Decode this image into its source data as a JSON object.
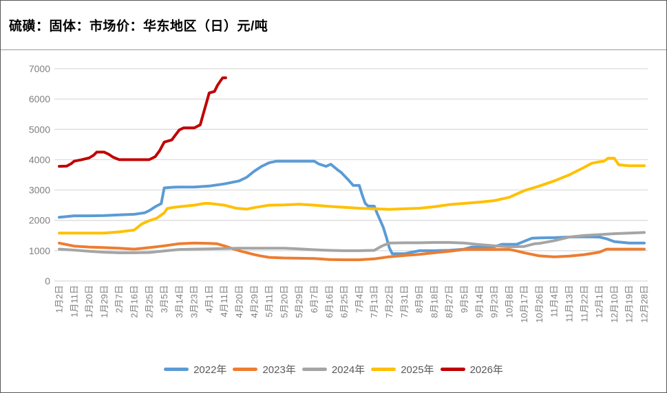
{
  "title": "硫磺：固体：市场价：华东地区（日）元/吨",
  "chart_data": {
    "type": "line",
    "title": "硫磺：固体：市场价：华东地区（日）元/吨",
    "ylabel": "元/吨",
    "ylim": [
      0,
      7000
    ],
    "y_ticks": [
      0,
      1000,
      2000,
      3000,
      4000,
      5000,
      6000,
      7000
    ],
    "grid": "horizontal",
    "legend_position": "bottom",
    "x_tick_labels": [
      "1月2日",
      "1月11日",
      "1月20日",
      "1月29日",
      "2月7日",
      "2月16日",
      "2月25日",
      "3月5日",
      "3月14日",
      "3月23日",
      "4月1日",
      "4月11日",
      "4月20日",
      "4月29日",
      "5月11日",
      "5月20日",
      "5月29日",
      "6月7日",
      "6月16日",
      "6月25日",
      "7月4日",
      "7月13日",
      "7月22日",
      "7月31日",
      "8月9日",
      "8月18日",
      "8月27日",
      "9月5日",
      "9月14日",
      "9月23日",
      "10月8日",
      "10月17日",
      "10月26日",
      "11月4日",
      "11月13日",
      "11月22日",
      "12月1日",
      "12月10日",
      "12月19日",
      "12月28日"
    ],
    "series": [
      {
        "name": "2022年",
        "color": "#5B9BD5",
        "points": [
          [
            0,
            2100
          ],
          [
            1,
            2150
          ],
          [
            2,
            2150
          ],
          [
            3,
            2160
          ],
          [
            4,
            2180
          ],
          [
            5,
            2200
          ],
          [
            5.7,
            2250
          ],
          [
            6,
            2320
          ],
          [
            6.4,
            2450
          ],
          [
            6.8,
            2550
          ],
          [
            7,
            3070
          ],
          [
            7.5,
            3090
          ],
          [
            8,
            3100
          ],
          [
            9,
            3100
          ],
          [
            10,
            3130
          ],
          [
            11,
            3200
          ],
          [
            12,
            3300
          ],
          [
            12.5,
            3420
          ],
          [
            13,
            3620
          ],
          [
            13.5,
            3780
          ],
          [
            14,
            3900
          ],
          [
            14.5,
            3950
          ],
          [
            15,
            3950
          ],
          [
            16,
            3950
          ],
          [
            17,
            3950
          ],
          [
            17.3,
            3860
          ],
          [
            17.8,
            3780
          ],
          [
            18.1,
            3850
          ],
          [
            18.6,
            3650
          ],
          [
            18.8,
            3580
          ],
          [
            19.3,
            3320
          ],
          [
            19.6,
            3150
          ],
          [
            20,
            3150
          ],
          [
            20.2,
            2830
          ],
          [
            20.4,
            2560
          ],
          [
            20.6,
            2470
          ],
          [
            21,
            2470
          ],
          [
            21.2,
            2220
          ],
          [
            21.4,
            2000
          ],
          [
            21.6,
            1770
          ],
          [
            21.8,
            1460
          ],
          [
            22,
            1100
          ],
          [
            22.2,
            900
          ],
          [
            23,
            900
          ],
          [
            23.5,
            950
          ],
          [
            24,
            1000
          ],
          [
            25,
            1000
          ],
          [
            26,
            1010
          ],
          [
            27,
            1050
          ],
          [
            27.5,
            1120
          ],
          [
            28,
            1120
          ],
          [
            29,
            1130
          ],
          [
            29.5,
            1210
          ],
          [
            30.5,
            1210
          ],
          [
            31,
            1310
          ],
          [
            31.5,
            1410
          ],
          [
            32,
            1420
          ],
          [
            33,
            1430
          ],
          [
            34,
            1450
          ],
          [
            35,
            1460
          ],
          [
            36,
            1450
          ],
          [
            36.5,
            1390
          ],
          [
            37,
            1300
          ],
          [
            38,
            1250
          ],
          [
            39,
            1250
          ]
        ]
      },
      {
        "name": "2023年",
        "color": "#ED7D31",
        "points": [
          [
            0,
            1250
          ],
          [
            1,
            1150
          ],
          [
            2,
            1120
          ],
          [
            3,
            1100
          ],
          [
            4,
            1080
          ],
          [
            5,
            1050
          ],
          [
            6,
            1100
          ],
          [
            7,
            1160
          ],
          [
            8,
            1230
          ],
          [
            9,
            1250
          ],
          [
            10,
            1240
          ],
          [
            10.5,
            1230
          ],
          [
            11,
            1160
          ],
          [
            11.6,
            1060
          ],
          [
            12,
            1000
          ],
          [
            13,
            870
          ],
          [
            13.5,
            820
          ],
          [
            14,
            780
          ],
          [
            15,
            760
          ],
          [
            16,
            750
          ],
          [
            17,
            740
          ],
          [
            18,
            710
          ],
          [
            19,
            700
          ],
          [
            20,
            700
          ],
          [
            21,
            730
          ],
          [
            22,
            800
          ],
          [
            23,
            840
          ],
          [
            24,
            880
          ],
          [
            25,
            930
          ],
          [
            26,
            980
          ],
          [
            27,
            1040
          ],
          [
            28,
            1040
          ],
          [
            29,
            1040
          ],
          [
            30,
            1040
          ],
          [
            30.5,
            990
          ],
          [
            31,
            930
          ],
          [
            32,
            830
          ],
          [
            33,
            795
          ],
          [
            34,
            820
          ],
          [
            35,
            870
          ],
          [
            36,
            950
          ],
          [
            36.5,
            1050
          ],
          [
            37,
            1050
          ],
          [
            38,
            1050
          ],
          [
            39,
            1050
          ]
        ]
      },
      {
        "name": "2024年",
        "color": "#A5A5A5",
        "points": [
          [
            0,
            1050
          ],
          [
            1,
            1020
          ],
          [
            2,
            980
          ],
          [
            3,
            950
          ],
          [
            4,
            930
          ],
          [
            5,
            930
          ],
          [
            6,
            940
          ],
          [
            7,
            990
          ],
          [
            8,
            1040
          ],
          [
            9,
            1050
          ],
          [
            10,
            1060
          ],
          [
            11,
            1070
          ],
          [
            12,
            1080
          ],
          [
            13,
            1080
          ],
          [
            14,
            1080
          ],
          [
            15,
            1080
          ],
          [
            16,
            1060
          ],
          [
            17,
            1030
          ],
          [
            18,
            1010
          ],
          [
            19,
            1000
          ],
          [
            20,
            1000
          ],
          [
            21,
            1010
          ],
          [
            21.5,
            1150
          ],
          [
            22,
            1250
          ],
          [
            23,
            1260
          ],
          [
            24,
            1260
          ],
          [
            25,
            1270
          ],
          [
            26,
            1270
          ],
          [
            27,
            1250
          ],
          [
            28,
            1200
          ],
          [
            29,
            1160
          ],
          [
            30,
            1130
          ],
          [
            31,
            1140
          ],
          [
            31.7,
            1230
          ],
          [
            32,
            1240
          ],
          [
            33,
            1330
          ],
          [
            34,
            1450
          ],
          [
            35,
            1500
          ],
          [
            36,
            1530
          ],
          [
            37,
            1560
          ],
          [
            38,
            1580
          ],
          [
            39,
            1600
          ]
        ]
      },
      {
        "name": "2025年",
        "color": "#FFC000",
        "points": [
          [
            0,
            1580
          ],
          [
            1,
            1580
          ],
          [
            2,
            1580
          ],
          [
            3,
            1580
          ],
          [
            4,
            1620
          ],
          [
            5,
            1680
          ],
          [
            5.5,
            1880
          ],
          [
            6,
            1990
          ],
          [
            6.5,
            2070
          ],
          [
            7,
            2250
          ],
          [
            7.2,
            2390
          ],
          [
            7.5,
            2420
          ],
          [
            8,
            2450
          ],
          [
            9,
            2500
          ],
          [
            9.7,
            2560
          ],
          [
            10,
            2560
          ],
          [
            11,
            2500
          ],
          [
            11.8,
            2400
          ],
          [
            12,
            2390
          ],
          [
            12.5,
            2370
          ],
          [
            13,
            2420
          ],
          [
            14,
            2500
          ],
          [
            15,
            2510
          ],
          [
            16,
            2530
          ],
          [
            17,
            2500
          ],
          [
            18,
            2460
          ],
          [
            19,
            2430
          ],
          [
            20,
            2400
          ],
          [
            21,
            2380
          ],
          [
            22,
            2360
          ],
          [
            23,
            2380
          ],
          [
            24,
            2400
          ],
          [
            25,
            2450
          ],
          [
            26,
            2520
          ],
          [
            27,
            2560
          ],
          [
            28,
            2600
          ],
          [
            29,
            2650
          ],
          [
            30,
            2760
          ],
          [
            31,
            2980
          ],
          [
            32,
            3130
          ],
          [
            33,
            3300
          ],
          [
            34,
            3500
          ],
          [
            35,
            3750
          ],
          [
            35.5,
            3880
          ],
          [
            36,
            3930
          ],
          [
            36.3,
            3950
          ],
          [
            36.6,
            4050
          ],
          [
            37,
            4050
          ],
          [
            37.3,
            3830
          ],
          [
            38,
            3800
          ],
          [
            39,
            3800
          ]
        ]
      },
      {
        "name": "2026年",
        "color": "#C00000",
        "points": [
          [
            0,
            3780
          ],
          [
            0.5,
            3790
          ],
          [
            0.8,
            3870
          ],
          [
            1,
            3950
          ],
          [
            1.5,
            4000
          ],
          [
            2,
            4060
          ],
          [
            2.3,
            4150
          ],
          [
            2.5,
            4250
          ],
          [
            3,
            4250
          ],
          [
            3.3,
            4180
          ],
          [
            3.6,
            4080
          ],
          [
            4,
            4000
          ],
          [
            5,
            4000
          ],
          [
            6,
            4000
          ],
          [
            6.4,
            4100
          ],
          [
            6.7,
            4300
          ],
          [
            7,
            4580
          ],
          [
            7.5,
            4650
          ],
          [
            8,
            4980
          ],
          [
            8.3,
            5050
          ],
          [
            9,
            5050
          ],
          [
            9.4,
            5150
          ],
          [
            9.6,
            5500
          ],
          [
            9.8,
            5850
          ],
          [
            10,
            6200
          ],
          [
            10.35,
            6250
          ],
          [
            10.55,
            6450
          ],
          [
            10.75,
            6600
          ],
          [
            10.9,
            6700
          ],
          [
            11.1,
            6700
          ]
        ]
      }
    ]
  }
}
